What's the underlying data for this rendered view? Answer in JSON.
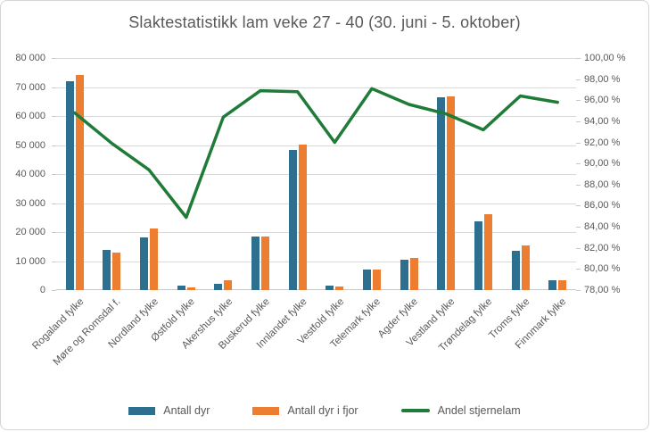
{
  "title": "Slaktestatistikk lam veke 27 - 40 (30. juni - 5. oktober)",
  "colors": {
    "bar_current": "#2e6e8e",
    "bar_last_year": "#ed7d31",
    "line": "#1f7b38",
    "text": "#595959",
    "gridline": "#d9d9d9"
  },
  "chart_data": {
    "type": "combo-bar-line",
    "title": "Slaktestatistikk lam veke 27 - 40 (30. juni - 5. oktober)",
    "categories": [
      "Rogaland fylke",
      "Møre og Romsdal f.",
      "Nordland fylke",
      "Østfold fylke",
      "Akershus fylke",
      "Buskerud fylke",
      "Innlandet fylke",
      "Vestfold fylke",
      "Telemark fylke",
      "Agder fylke",
      "Vestland fylke",
      "Trøndelag fylke",
      "Troms fylke",
      "Finnmark fylke"
    ],
    "series": [
      {
        "name": "Antall dyr",
        "type": "bar",
        "axis": "left",
        "color": "#2e6e8e",
        "values": [
          72000,
          14000,
          18100,
          1400,
          2300,
          18400,
          48200,
          1600,
          7000,
          10500,
          66600,
          23700,
          13600,
          3400
        ]
      },
      {
        "name": "Antall dyr i fjor",
        "type": "bar",
        "axis": "left",
        "color": "#ed7d31",
        "values": [
          74300,
          13000,
          21300,
          1000,
          3300,
          18500,
          50200,
          1300,
          7100,
          11200,
          66700,
          26200,
          15300,
          3500
        ]
      },
      {
        "name": "Andel stjernelam",
        "type": "line",
        "axis": "right",
        "color": "#1f7b38",
        "values": [
          94.8,
          91.9,
          89.4,
          84.9,
          94.4,
          96.9,
          96.8,
          92.0,
          97.1,
          95.6,
          94.7,
          93.2,
          96.4,
          95.8
        ]
      }
    ],
    "left_axis": {
      "min": 0,
      "max": 80000,
      "step": 10000,
      "tick_labels_top_to_bottom": [
        "80 000",
        "70 000",
        "60 000",
        "50 000",
        "40 000",
        "30 000",
        "20 000",
        "10 000",
        "0"
      ]
    },
    "right_axis": {
      "min": 78,
      "max": 100,
      "step": 2,
      "tick_labels_top_to_bottom": [
        "100,00 %",
        "98,00 %",
        "96,00 %",
        "94,00 %",
        "92,00 %",
        "90,00 %",
        "88,00 %",
        "86,00 %",
        "84,00 %",
        "82,00 %",
        "80,00 %",
        "78,00 %"
      ]
    },
    "grid": true,
    "legend_position": "bottom",
    "legend": [
      "Antall dyr",
      "Antall dyr i fjor",
      "Andel stjernelam"
    ]
  }
}
